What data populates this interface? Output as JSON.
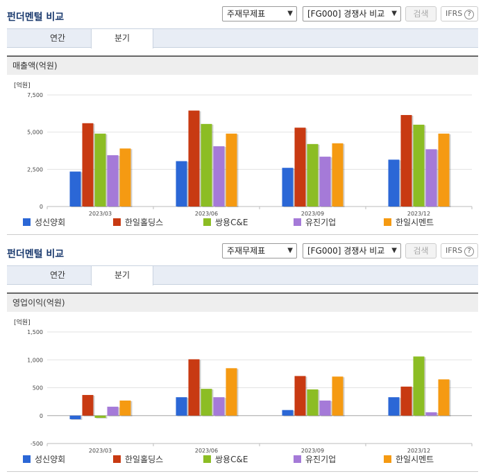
{
  "sections": [
    {
      "title": "펀더멘털 비교",
      "select1": "주재무제표",
      "select2": "[FG000] 경쟁사 비교",
      "search_label": "검색",
      "ifrs_label": "IFRS",
      "ifrs_help": "?",
      "tabs": [
        {
          "label": "연간"
        },
        {
          "label": "분기"
        }
      ],
      "active_tab": 1,
      "chart_title": "매출액(억원)",
      "unit": "[억원]",
      "legend": [
        "성신양회",
        "한일홀딩스",
        "쌍용C&E",
        "유진기업",
        "한일시멘트"
      ]
    },
    {
      "title": "펀더멘털 비교",
      "select1": "주재무제표",
      "select2": "[FG000] 경쟁사 비교",
      "search_label": "검색",
      "ifrs_label": "IFRS",
      "ifrs_help": "?",
      "tabs": [
        {
          "label": "연간"
        },
        {
          "label": "분기"
        }
      ],
      "active_tab": 1,
      "chart_title": "영업이익(억원)",
      "unit": "[억원]",
      "legend": [
        "성신양회",
        "한일홀딩스",
        "쌍용C&E",
        "유진기업",
        "한일시멘트"
      ]
    }
  ],
  "colors": [
    "#2b67d6",
    "#c83a12",
    "#8cbd24",
    "#a57ad8",
    "#f59a12"
  ],
  "chart_data": [
    {
      "type": "bar",
      "title": "매출액(억원)",
      "ylabel": "[억원]",
      "categories": [
        "2023/03",
        "2023/06",
        "2023/09",
        "2023/12"
      ],
      "ylim": [
        0,
        7500
      ],
      "yticks": [
        0,
        2500,
        5000,
        7500
      ],
      "ytick_labels": [
        "0",
        "2,500",
        "5,000",
        "7,500"
      ],
      "series": [
        {
          "name": "성신양회",
          "values": [
            2350,
            3050,
            2600,
            3150
          ]
        },
        {
          "name": "한일홀딩스",
          "values": [
            5600,
            6450,
            5300,
            6150
          ]
        },
        {
          "name": "쌍용C&E",
          "values": [
            4900,
            5550,
            4200,
            5500
          ]
        },
        {
          "name": "유진기업",
          "values": [
            3450,
            4050,
            3350,
            3850
          ]
        },
        {
          "name": "한일시멘트",
          "values": [
            3900,
            4900,
            4250,
            4900
          ]
        }
      ],
      "legend_position": "bottom"
    },
    {
      "type": "bar",
      "title": "영업이익(억원)",
      "ylabel": "[억원]",
      "categories": [
        "2023/03",
        "2023/06",
        "2023/09",
        "2023/12"
      ],
      "ylim": [
        -500,
        1500
      ],
      "yticks": [
        -500,
        0,
        500,
        1000,
        1500
      ],
      "ytick_labels": [
        "-500",
        "0",
        "500",
        "1,000",
        "1,500"
      ],
      "series": [
        {
          "name": "성신양회",
          "values": [
            -65,
            330,
            100,
            330
          ]
        },
        {
          "name": "한일홀딩스",
          "values": [
            370,
            1010,
            710,
            520
          ]
        },
        {
          "name": "쌍용C&E",
          "values": [
            -40,
            480,
            470,
            1060
          ]
        },
        {
          "name": "유진기업",
          "values": [
            160,
            330,
            270,
            60
          ]
        },
        {
          "name": "한일시멘트",
          "values": [
            270,
            850,
            700,
            650
          ]
        }
      ],
      "legend_position": "bottom"
    }
  ]
}
